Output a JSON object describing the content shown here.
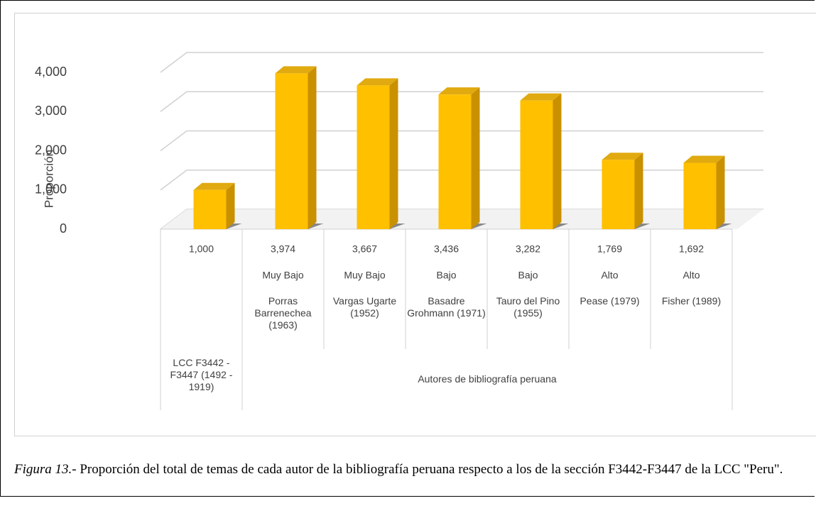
{
  "chart_data": {
    "type": "bar",
    "y_label": "Proporción",
    "categories": [
      null,
      "Porras Barrenechea (1963)",
      "Vargas Ugarte (1952)",
      "Basadre Grohmann (1971)",
      "Tauro del Pino (1955)",
      "Pease (1979)",
      "Fisher (1989)"
    ],
    "levels": [
      null,
      "Muy Bajo",
      "Muy Bajo",
      "Bajo",
      "Bajo",
      "Alto",
      "Alto"
    ],
    "groups": [
      {
        "label": "LCC F3442 - F3447 (1492 - 1919)",
        "span": 1
      },
      {
        "label": "Autores de bibliografía peruana",
        "span": 6
      }
    ],
    "values": [
      1000,
      3974,
      3667,
      3436,
      3282,
      1769,
      1692
    ],
    "value_labels": [
      "1,000",
      "3,974",
      "3,667",
      "3,436",
      "3,282",
      "1,769",
      "1,692"
    ],
    "color": "#ffc000",
    "ylim": [
      0,
      4000
    ],
    "yticks": [
      0,
      {
        "value": 1000,
        "label": "1,000"
      },
      {
        "value": 2000,
        "label": "2,000"
      },
      {
        "value": 3000,
        "label": "3,000"
      },
      {
        "value": 4000,
        "label": "4,000"
      }
    ],
    "grid": true,
    "caption_label": "Figura 13.",
    "caption_text": "- Proporción del total de temas de cada autor de la bibliografía peruana respecto a los de la sección F3442-F3447 de la LCC \"Peru\"."
  }
}
